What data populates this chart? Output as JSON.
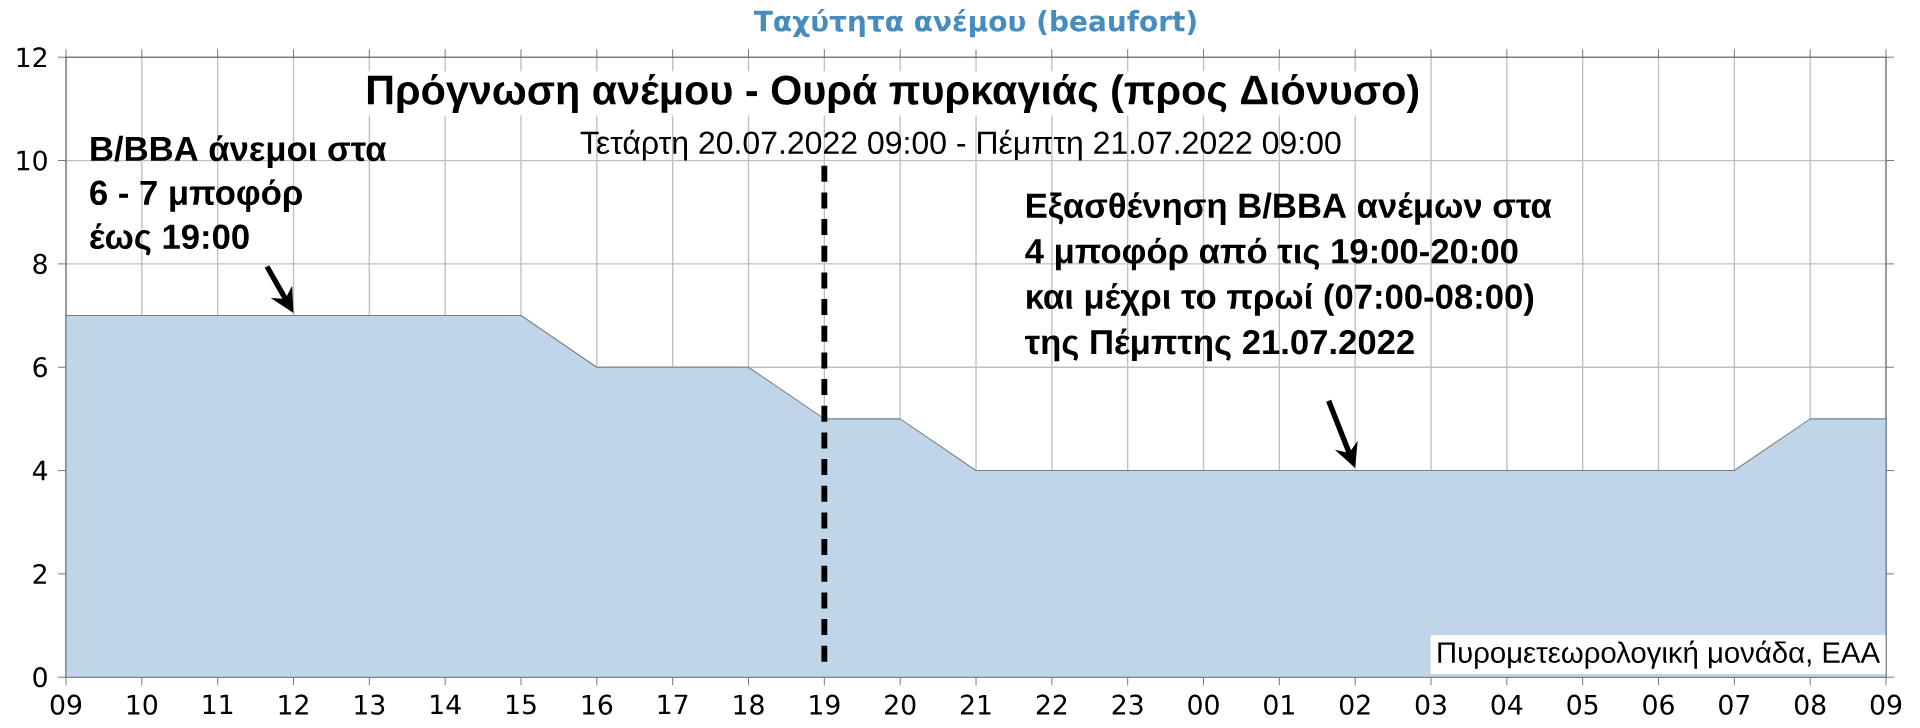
{
  "chart_data": {
    "type": "area",
    "title": "Ταχύτητα ανέμου (beaufort)",
    "subtitle": "Πρόγνωση ανέμου - Ουρά πυρκαγιάς (προς Διόνυσο)",
    "categories": [
      "09",
      "10",
      "11",
      "12",
      "13",
      "14",
      "15",
      "16",
      "17",
      "18",
      "19",
      "20",
      "21",
      "22",
      "23",
      "00",
      "01",
      "02",
      "03",
      "04",
      "05",
      "06",
      "07",
      "08",
      "09"
    ],
    "series": [
      {
        "color": "#c0d6e8",
        "values": [
          7,
          7,
          7,
          7,
          7,
          7,
          7,
          6,
          6,
          6,
          5,
          5,
          4,
          4,
          4,
          4,
          4,
          4,
          4,
          4,
          4,
          4,
          4,
          5,
          5
        ]
      }
    ],
    "ylim": [
      0,
      12
    ],
    "yticks": [
      0,
      2,
      4,
      6,
      8,
      10,
      12
    ],
    "grid": true,
    "marker": "none",
    "line_style": "solid",
    "ref_lines": [
      {
        "axis": "x",
        "value": "19",
        "color": "#000000",
        "line_style": "dashed"
      }
    ],
    "annotations": [
      "Τετάρτη 20.07.2022 09:00 - Πέμπτη 21.07.2022 09:00",
      "Β/ΒΒΑ άνεμοι στα",
      "6 - 7 μποφόρ",
      {
        "text": "έως 19:00",
        "x": "12",
        "y": 7
      },
      "Εξασθένηση Β/ΒΒΑ ανέμων στα",
      "4 μποφόρ από τις 19:00-20:00",
      "και μέχρι το πρωί (07:00-08:00)",
      {
        "text": "της Πέμπτης 21.07.2022",
        "x": "02",
        "y": 4
      },
      "Πυρομετεωρολογική μονάδα, ΕΑΑ"
    ]
  }
}
